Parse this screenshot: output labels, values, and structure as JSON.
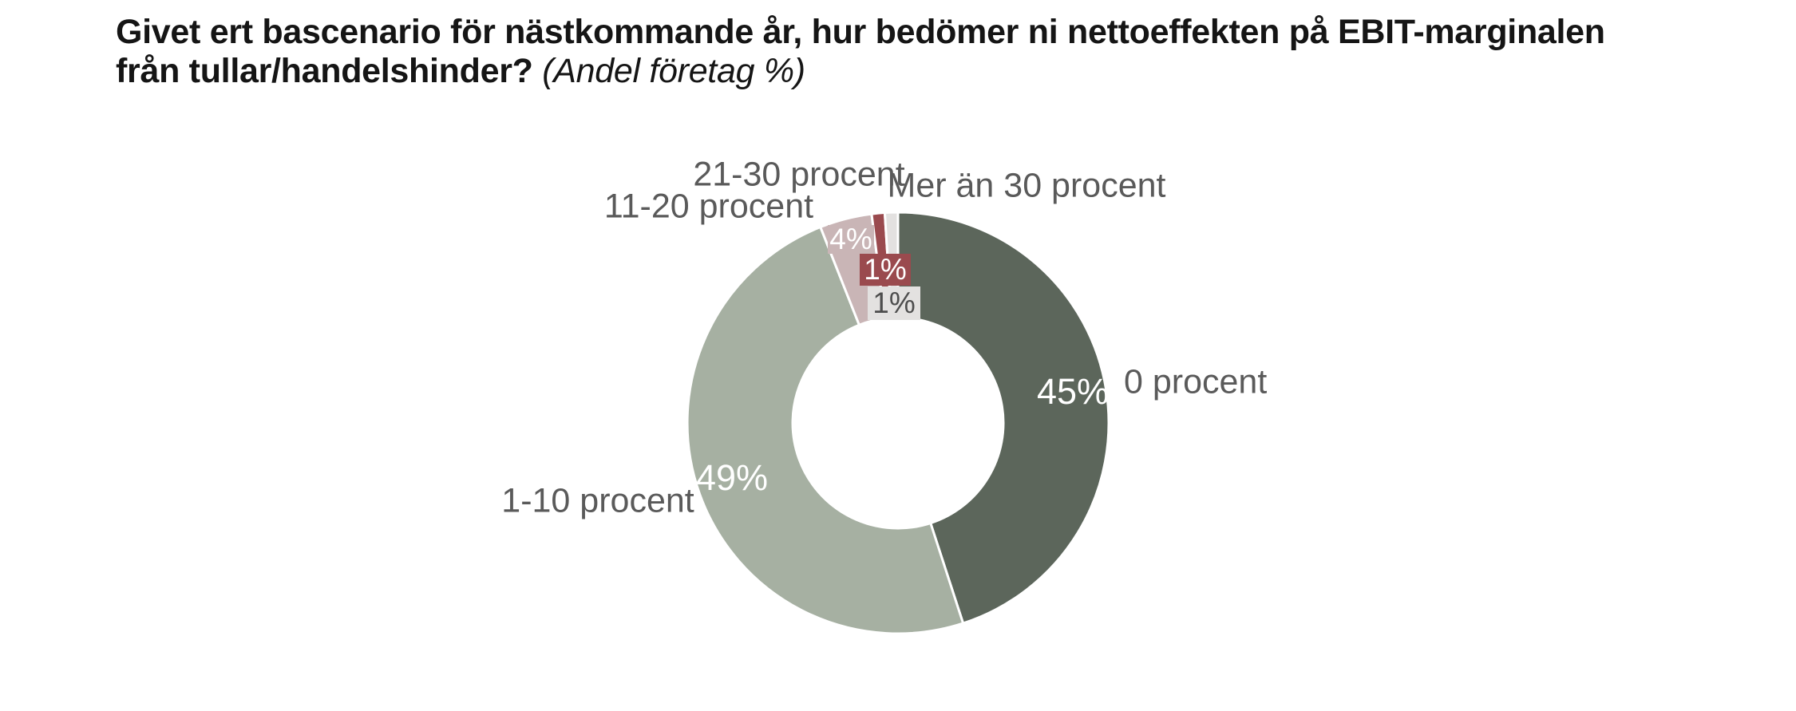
{
  "title": {
    "line1": "Givet ert bascenario för nästkommande år, hur bedömer ni nettoeffekten på EBIT-marginalen",
    "line2_bold": "från tullar/handelshinder?",
    "line2_italic": "(Andel företag %)"
  },
  "chart_data": {
    "type": "pie",
    "subtype": "donut",
    "title": "Givet ert bascenario för nästkommande år, hur bedömer ni nettoeffekten på EBIT-marginalen från tullar/handelshinder?",
    "subtitle": "(Andel företag %)",
    "unit": "% av företag",
    "direction": "clockwise",
    "start_angle_deg": 0,
    "inner_radius_ratio": 0.5,
    "legend_position": "labels-outside",
    "separator_color": "#ffffff",
    "label_text_color": "#5a5a5a",
    "categories": [
      "0 procent",
      "1-10 procent",
      "11-20 procent",
      "21-30 procent",
      "Mer än 30 procent"
    ],
    "values": [
      45,
      49,
      4,
      1,
      1
    ],
    "segments": [
      {
        "label": "0 procent",
        "value": 45,
        "value_label": "45%",
        "color": "#5c665b"
      },
      {
        "label": "1-10 procent",
        "value": 49,
        "value_label": "49%",
        "color": "#a6b0a2"
      },
      {
        "label": "11-20 procent",
        "value": 4,
        "value_label": "4%",
        "color": "#c9b5b6"
      },
      {
        "label": "21-30 procent",
        "value": 1,
        "value_label": "1%",
        "color": "#9a4a4e"
      },
      {
        "label": "Mer än 30 procent",
        "value": 1,
        "value_label": "1%",
        "color": "#e3e1e0"
      }
    ]
  }
}
